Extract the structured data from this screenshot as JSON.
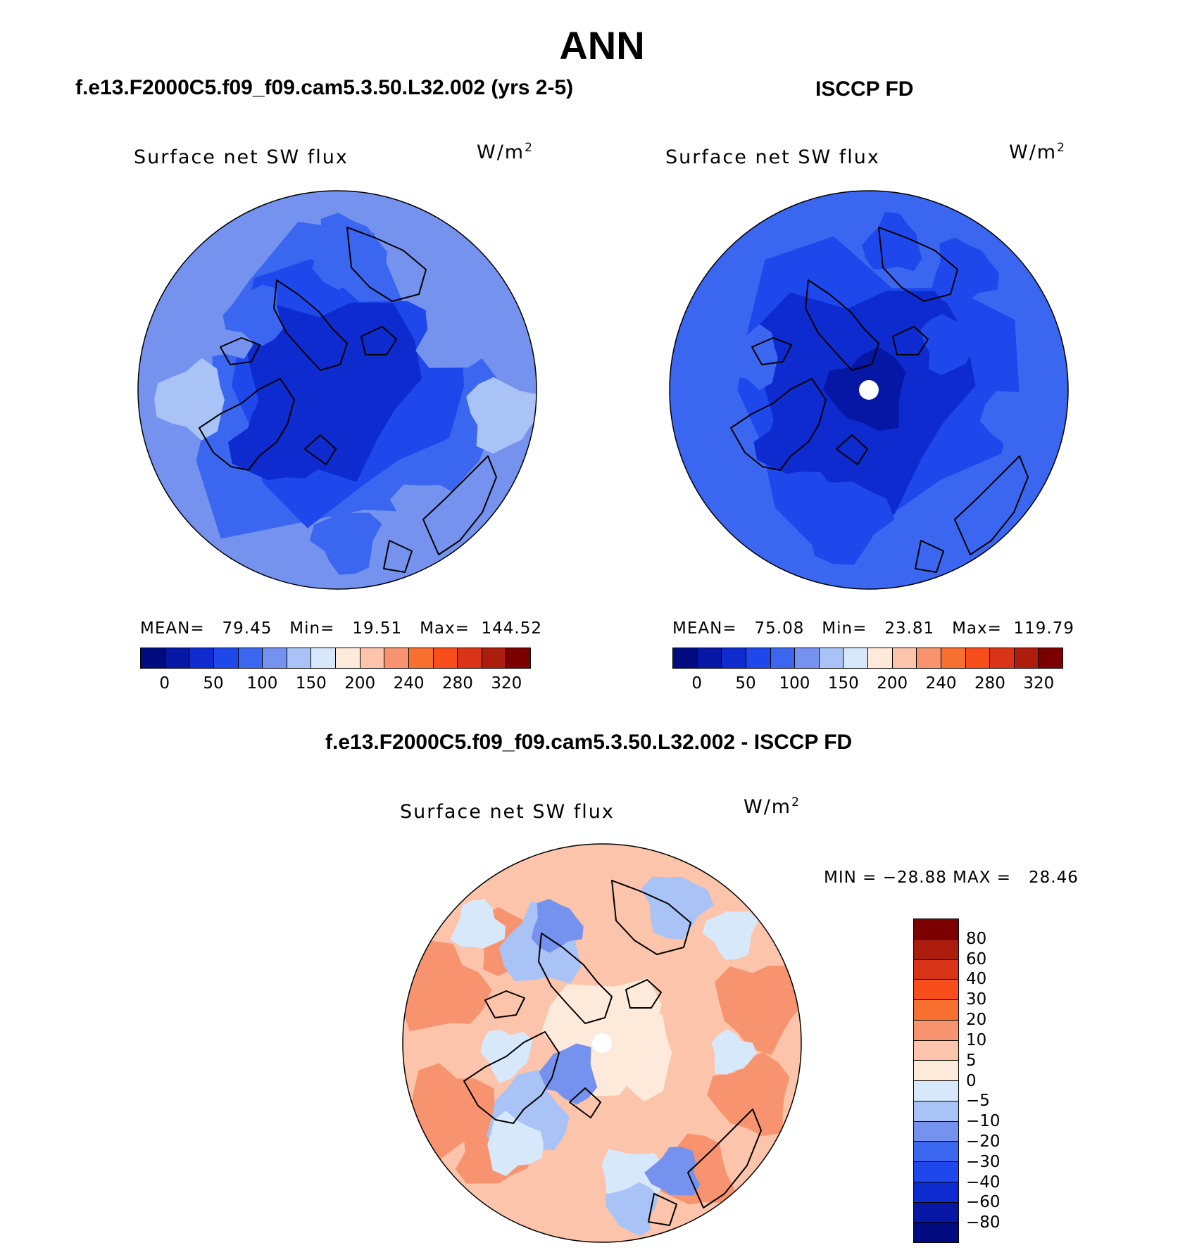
{
  "season": "ANN",
  "colors": {
    "abs_scale": [
      "#000b80",
      "#0616a5",
      "#0d2bce",
      "#1f48ec",
      "#3a66f0",
      "#7593ee",
      "#a9c3f6",
      "#d7e8fb",
      "#feeadb",
      "#fbc4ab",
      "#f7936e",
      "#f7702f",
      "#f74e1b",
      "#d93417",
      "#ac1d0e",
      "#7d0000"
    ],
    "diff_scale": [
      "#000b80",
      "#0616a5",
      "#0d2bce",
      "#1f48ec",
      "#3a66f0",
      "#7593ee",
      "#a9c3f6",
      "#d7e8fb",
      "#feeadb",
      "#fbc4ab",
      "#f7936e",
      "#f7702f",
      "#f74e1b",
      "#d93417",
      "#ac1d0e",
      "#7d0000"
    ]
  },
  "chart_data": [
    {
      "type": "heatmap",
      "panel": "model",
      "title": "f.e13.F2000C5.f09_f09.cam5.3.50.L32.002 (yrs 2-5)",
      "variable": "Surface net SW flux",
      "units": "W/m",
      "units_exp": "2",
      "projection": "north polar stereographic",
      "stats": {
        "mean": 79.45,
        "min": 19.51,
        "max": 144.52
      },
      "stats_text": "MEAN=   79.45   Min=   19.51   Max=  144.52",
      "levels": [
        0,
        25,
        50,
        75,
        100,
        125,
        150,
        175,
        200,
        220,
        240,
        260,
        280,
        300,
        320
      ],
      "colorbar_labels": [
        "0",
        "50",
        "100",
        "150",
        "200",
        "240",
        "280",
        "320"
      ]
    },
    {
      "type": "heatmap",
      "panel": "obs",
      "title": "ISCCP FD",
      "variable": "Surface net SW flux",
      "units": "W/m",
      "units_exp": "2",
      "projection": "north polar stereographic",
      "stats": {
        "mean": 75.08,
        "min": 23.81,
        "max": 119.79
      },
      "stats_text": "MEAN=   75.08   Min=   23.81   Max=  119.79",
      "levels": [
        0,
        25,
        50,
        75,
        100,
        125,
        150,
        175,
        200,
        220,
        240,
        260,
        280,
        300,
        320
      ],
      "colorbar_labels": [
        "0",
        "50",
        "100",
        "150",
        "200",
        "240",
        "280",
        "320"
      ]
    },
    {
      "type": "heatmap",
      "panel": "difference",
      "title": "f.e13.F2000C5.f09_f09.cam5.3.50.L32.002 - ISCCP FD",
      "variable": "Surface net SW flux",
      "units": "W/m",
      "units_exp": "2",
      "projection": "north polar stereographic",
      "stats": {
        "min": -28.88,
        "max": 28.46
      },
      "stats_text": "MIN = −28.88 MAX =   28.46",
      "levels": [
        80,
        60,
        40,
        30,
        20,
        10,
        5,
        0,
        -5,
        -10,
        -20,
        -30,
        -40,
        -60,
        -80
      ],
      "colorbar_labels": [
        "80",
        "60",
        "40",
        "30",
        "20",
        "10",
        "5",
        "0",
        "−5",
        "−10",
        "−20",
        "−30",
        "−40",
        "−60",
        "−80"
      ]
    }
  ]
}
